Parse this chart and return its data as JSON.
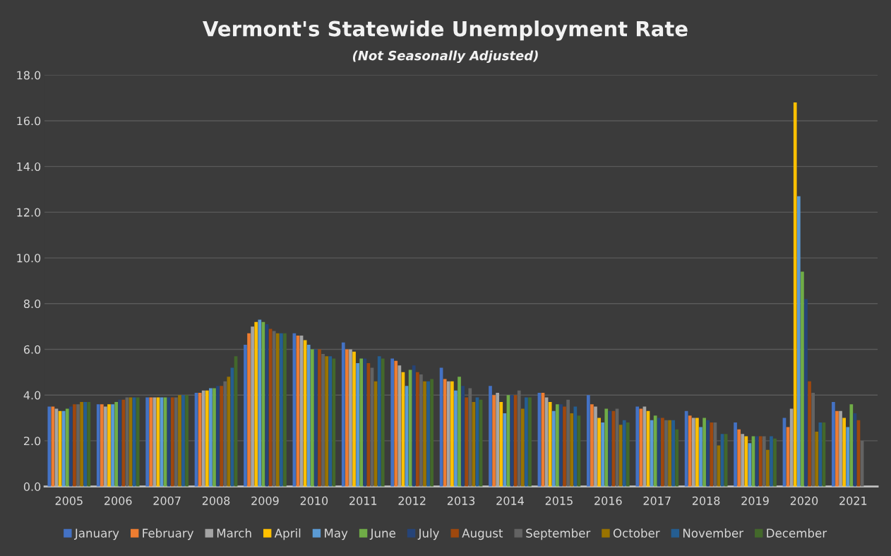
{
  "chart_data": {
    "type": "bar",
    "title": "Vermont's Statewide Unemployment Rate",
    "subtitle": "(Not Seasonally Adjusted)",
    "categories": [
      "2005",
      "2006",
      "2007",
      "2008",
      "2009",
      "2010",
      "2011",
      "2012",
      "2013",
      "2014",
      "2015",
      "2016",
      "2017",
      "2018",
      "2019",
      "2020",
      "2021"
    ],
    "series": [
      {
        "name": "January",
        "color": "#4472c4",
        "values": [
          3.5,
          3.6,
          3.9,
          4.1,
          6.2,
          6.7,
          6.3,
          5.6,
          5.2,
          4.4,
          4.1,
          4.0,
          3.5,
          3.3,
          2.8,
          3.0,
          3.7
        ]
      },
      {
        "name": "February",
        "color": "#ed7d31",
        "values": [
          3.5,
          3.6,
          3.9,
          4.1,
          6.7,
          6.6,
          6.0,
          5.5,
          4.7,
          4.0,
          4.1,
          3.6,
          3.4,
          3.1,
          2.5,
          2.6,
          3.3
        ]
      },
      {
        "name": "March",
        "color": "#a5a5a5",
        "values": [
          3.4,
          3.5,
          3.9,
          4.2,
          7.0,
          6.6,
          6.0,
          5.3,
          4.6,
          4.1,
          3.9,
          3.5,
          3.5,
          3.0,
          2.3,
          3.4,
          3.3
        ]
      },
      {
        "name": "April",
        "color": "#ffc000",
        "values": [
          3.3,
          3.6,
          3.9,
          4.2,
          7.2,
          6.4,
          5.9,
          5.0,
          4.6,
          3.7,
          3.7,
          3.0,
          3.3,
          3.0,
          2.2,
          16.8,
          3.0
        ]
      },
      {
        "name": "May",
        "color": "#5b9bd5",
        "values": [
          3.3,
          3.6,
          3.9,
          4.3,
          7.3,
          6.2,
          5.4,
          4.4,
          4.2,
          3.2,
          3.3,
          2.8,
          2.9,
          2.6,
          1.9,
          12.7,
          2.6
        ]
      },
      {
        "name": "June",
        "color": "#70ad47",
        "values": [
          3.4,
          3.7,
          3.9,
          4.3,
          7.2,
          6.0,
          5.6,
          5.1,
          4.8,
          4.0,
          3.6,
          3.4,
          3.1,
          3.0,
          2.2,
          9.4,
          3.6
        ]
      },
      {
        "name": "July",
        "color": "#264478",
        "values": [
          3.5,
          3.8,
          3.9,
          4.4,
          7.1,
          6.0,
          5.6,
          5.3,
          4.4,
          4.0,
          3.6,
          3.3,
          3.0,
          2.9,
          2.2,
          8.2,
          3.2
        ]
      },
      {
        "name": "August",
        "color": "#9e480e",
        "values": [
          3.6,
          3.8,
          3.9,
          4.4,
          6.9,
          6.0,
          5.4,
          5.0,
          3.9,
          4.0,
          3.5,
          3.3,
          3.0,
          2.8,
          2.2,
          4.6,
          2.9
        ]
      },
      {
        "name": "September",
        "color": "#636363",
        "values": [
          3.6,
          3.9,
          3.9,
          4.6,
          6.8,
          5.8,
          5.2,
          4.9,
          4.3,
          4.2,
          3.8,
          3.4,
          2.9,
          2.8,
          2.2,
          4.1,
          2.0
        ]
      },
      {
        "name": "October",
        "color": "#997300",
        "values": [
          3.7,
          3.9,
          4.0,
          4.8,
          6.7,
          5.7,
          4.6,
          4.6,
          3.7,
          3.4,
          3.2,
          2.7,
          2.9,
          1.8,
          1.6,
          2.4,
          null
        ]
      },
      {
        "name": "November",
        "color": "#255e91",
        "values": [
          3.7,
          3.9,
          4.0,
          5.2,
          6.7,
          5.7,
          5.7,
          4.6,
          3.9,
          3.9,
          3.5,
          2.9,
          2.9,
          2.3,
          2.2,
          2.8,
          null
        ]
      },
      {
        "name": "December",
        "color": "#43682b",
        "values": [
          3.7,
          3.9,
          4.0,
          5.7,
          6.7,
          5.6,
          5.6,
          4.7,
          3.8,
          3.9,
          3.1,
          2.8,
          2.5,
          2.3,
          2.1,
          2.8,
          null
        ]
      }
    ],
    "ylim": [
      0,
      18
    ],
    "yticks": [
      {
        "value": 0,
        "label": "0.0"
      },
      {
        "value": 2,
        "label": "2.0"
      },
      {
        "value": 4,
        "label": "4.0"
      },
      {
        "value": 6,
        "label": "6.0"
      },
      {
        "value": 8,
        "label": "8.0"
      },
      {
        "value": 10,
        "label": "10.0"
      },
      {
        "value": 12,
        "label": "12.0"
      },
      {
        "value": 14,
        "label": "14.0"
      },
      {
        "value": 16,
        "label": "16.0"
      },
      {
        "value": 18,
        "label": "18.0"
      }
    ],
    "grid": "y",
    "legend": "bottom"
  }
}
